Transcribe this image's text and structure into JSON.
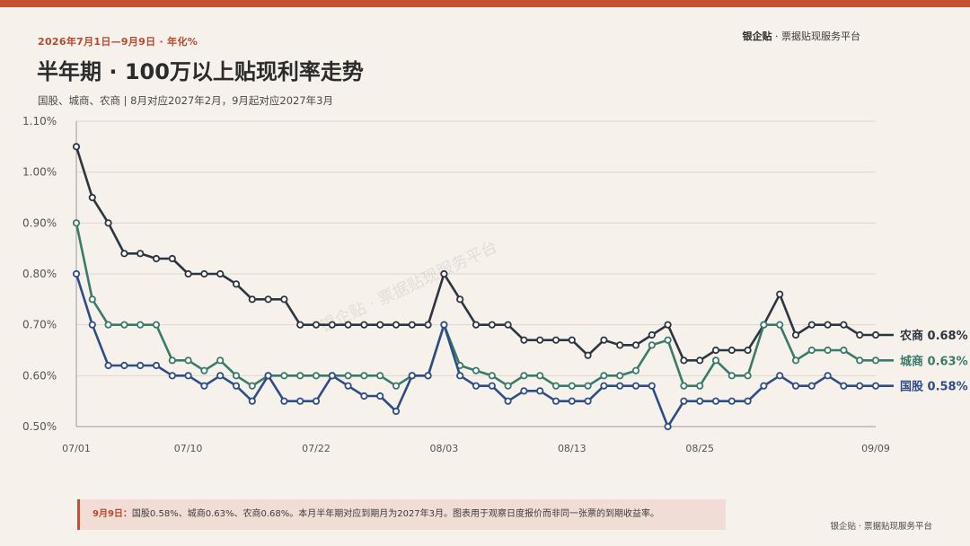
{
  "header": {
    "kicker": "2026年7月1日—9月9日 · 年化%",
    "title": "半年期 · 100万以上贴现利率走势",
    "subtitle": "国股、城商、农商 | 8月对应2027年2月，9月起对应2027年3月",
    "brand_name": "银企贴",
    "brand_suffix": " · 票据贴现服务平台"
  },
  "watermark": "银企贴 · 票据贴现服务平台",
  "note": {
    "date": "9月9日：",
    "text": "国股0.58%、城商0.63%、农商0.68%。本月半年期对应到期月为2027年3月。图表用于观察日度报价而非同一张票的到期收益率。"
  },
  "footer": {
    "brand": "银企贴 · 票据贴现服务平台"
  },
  "colors": {
    "accent": "#c4512f",
    "guogu": "#2e4d87",
    "chengshang": "#3a7a6b",
    "nongshang": "#2d3640",
    "grid": "#ddd7cf"
  },
  "chart_data": {
    "type": "line",
    "xlabel": "",
    "ylabel": "",
    "ylim": [
      0.5,
      1.1
    ],
    "yticks": [
      "0.50%",
      "0.60%",
      "0.70%",
      "0.80%",
      "0.90%",
      "1.00%",
      "1.10%"
    ],
    "xticks": [
      "07/01",
      "07/10",
      "07/22",
      "08/03",
      "08/13",
      "08/25",
      "09/09"
    ],
    "xtick_index": [
      0,
      7,
      15,
      23,
      31,
      39,
      50
    ],
    "grid": true,
    "series": [
      {
        "name": "农商",
        "end_label": "农商 0.68%",
        "color": "#2d3640",
        "values": [
          1.05,
          0.95,
          0.9,
          0.84,
          0.84,
          0.83,
          0.83,
          0.8,
          0.8,
          0.8,
          0.78,
          0.75,
          0.75,
          0.75,
          0.7,
          0.7,
          0.7,
          0.7,
          0.7,
          0.7,
          0.7,
          0.7,
          0.7,
          0.8,
          0.75,
          0.7,
          0.7,
          0.7,
          0.67,
          0.67,
          0.67,
          0.67,
          0.64,
          0.67,
          0.66,
          0.66,
          0.68,
          0.7,
          0.63,
          0.63,
          0.65,
          0.65,
          0.65,
          0.7,
          0.76,
          0.68,
          0.7,
          0.7,
          0.7,
          0.68,
          0.68
        ]
      },
      {
        "name": "城商",
        "end_label": "城商 0.63%",
        "color": "#3a7a6b",
        "values": [
          0.9,
          0.75,
          0.7,
          0.7,
          0.7,
          0.7,
          0.63,
          0.63,
          0.61,
          0.63,
          0.6,
          0.58,
          0.6,
          0.6,
          0.6,
          0.6,
          0.6,
          0.6,
          0.6,
          0.6,
          0.58,
          0.6,
          0.6,
          0.7,
          0.62,
          0.61,
          0.6,
          0.58,
          0.6,
          0.6,
          0.58,
          0.58,
          0.58,
          0.6,
          0.6,
          0.61,
          0.66,
          0.67,
          0.58,
          0.58,
          0.63,
          0.6,
          0.6,
          0.7,
          0.7,
          0.63,
          0.65,
          0.65,
          0.65,
          0.63,
          0.63
        ]
      },
      {
        "name": "国股",
        "end_label": "国股 0.58%",
        "color": "#2e4d87",
        "values": [
          0.8,
          0.7,
          0.62,
          0.62,
          0.62,
          0.62,
          0.6,
          0.6,
          0.58,
          0.6,
          0.58,
          0.55,
          0.6,
          0.55,
          0.55,
          0.55,
          0.6,
          0.58,
          0.56,
          0.56,
          0.53,
          0.6,
          0.6,
          0.7,
          0.6,
          0.58,
          0.58,
          0.55,
          0.57,
          0.57,
          0.55,
          0.55,
          0.55,
          0.58,
          0.58,
          0.58,
          0.58,
          0.5,
          0.55,
          0.55,
          0.55,
          0.55,
          0.55,
          0.58,
          0.6,
          0.58,
          0.58,
          0.6,
          0.58,
          0.58,
          0.58
        ]
      }
    ]
  }
}
